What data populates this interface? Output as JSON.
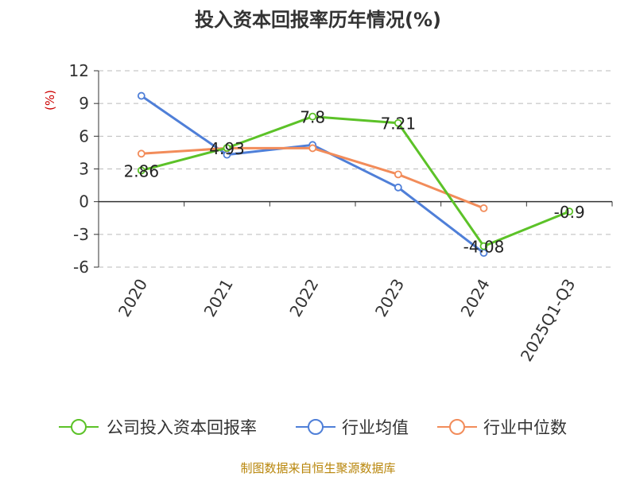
{
  "chart_data": {
    "type": "line",
    "title": "投入资本回报率历年情况(%)",
    "unit_label": "(%)",
    "categories": [
      "2020",
      "2021",
      "2022",
      "2023",
      "2024",
      "2025Q1-Q3"
    ],
    "ylim": [
      -6,
      12
    ],
    "yticks": [
      12,
      9,
      6,
      3,
      0,
      -3,
      -6
    ],
    "ytick_labels": [
      "12",
      "9",
      "6",
      "3",
      "0",
      "-3",
      "-6"
    ],
    "grid": true,
    "legend_position": "bottom",
    "series": [
      {
        "name": "公司投入资本回报率",
        "color": "#5cc228",
        "values": [
          2.86,
          4.93,
          7.8,
          7.21,
          -4.08,
          -0.9
        ],
        "labels": [
          "2.86",
          "4.93",
          "7.8",
          "7.21",
          "-4.08",
          "-0.9"
        ]
      },
      {
        "name": "行业均值",
        "color": "#4f7fd8",
        "values": [
          9.7,
          4.3,
          5.2,
          1.3,
          -4.7,
          null
        ]
      },
      {
        "name": "行业中位数",
        "color": "#f28c5a",
        "values": [
          4.4,
          4.9,
          4.9,
          2.5,
          -0.6,
          null
        ]
      }
    ]
  },
  "source_text": "制图数据来自恒生聚源数据库"
}
